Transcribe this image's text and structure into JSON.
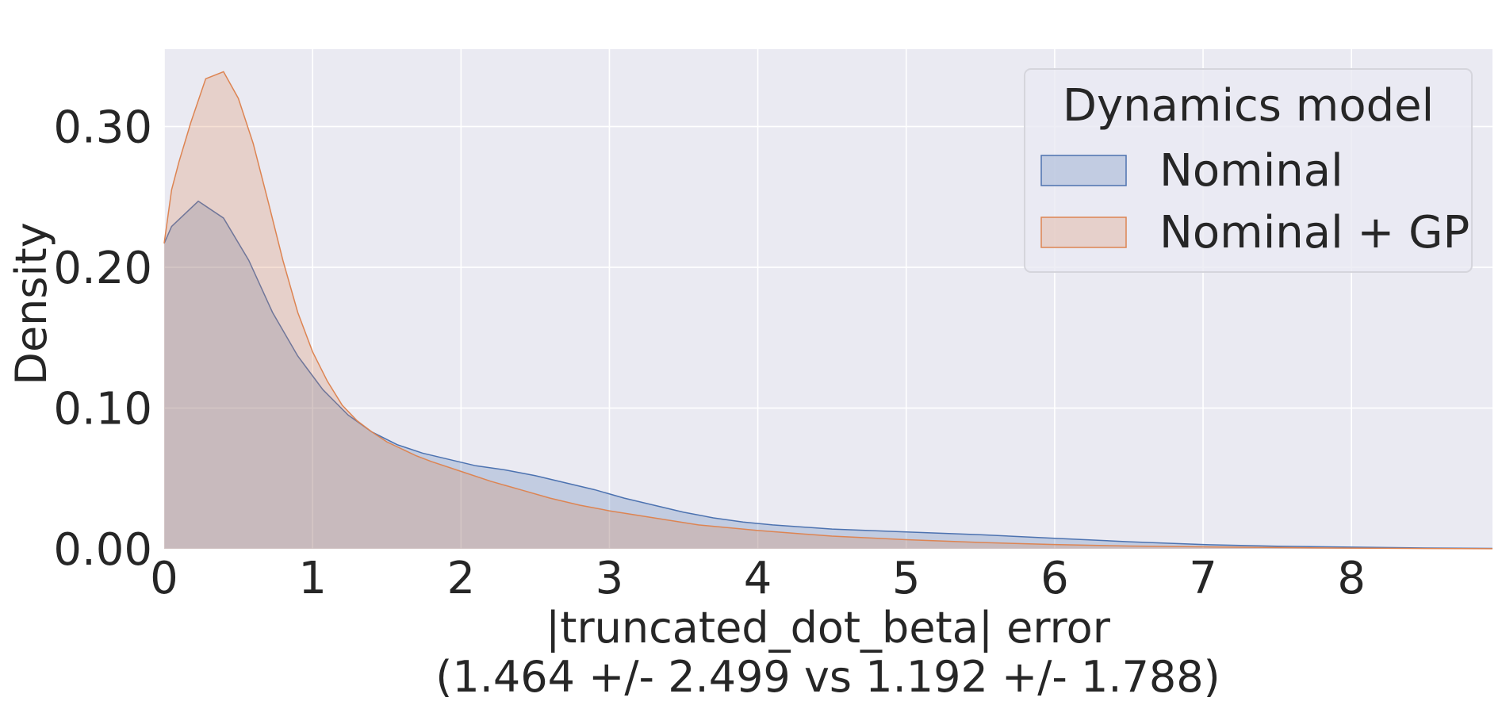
{
  "chart_data": {
    "type": "area",
    "xlabel": "|truncated_dot_beta| error",
    "xlabel_line2": "(1.464 +/- 2.499 vs 1.192 +/- 1.788)",
    "ylabel": "Density",
    "xlim": [
      0,
      8.95
    ],
    "ylim": [
      0,
      0.355
    ],
    "x_ticks": [
      0,
      1,
      2,
      3,
      4,
      5,
      6,
      7,
      8
    ],
    "x_tick_labels": [
      "0",
      "1",
      "2",
      "3",
      "4",
      "5",
      "6",
      "7",
      "8"
    ],
    "y_ticks": [
      0,
      0.1,
      0.2,
      0.3
    ],
    "y_tick_labels": [
      "0.00",
      "0.10",
      "0.20",
      "0.30"
    ],
    "grid": true,
    "legend": {
      "title": "Dynamics model",
      "placement": "top-right"
    },
    "series": [
      {
        "name": "Nominal",
        "color": "#4C72B0",
        "x": [
          0,
          0.05,
          0.1,
          0.23,
          0.4,
          0.57,
          0.73,
          0.9,
          1.07,
          1.24,
          1.4,
          1.57,
          1.74,
          1.9,
          2.1,
          2.3,
          2.5,
          2.7,
          2.9,
          3.1,
          3.3,
          3.5,
          3.7,
          3.9,
          4.1,
          4.5,
          5.0,
          5.5,
          6.0,
          6.5,
          7.0,
          7.5,
          8.0,
          8.5,
          8.95
        ],
        "y": [
          0.217,
          0.229,
          0.234,
          0.247,
          0.235,
          0.205,
          0.168,
          0.137,
          0.113,
          0.095,
          0.083,
          0.074,
          0.068,
          0.064,
          0.059,
          0.056,
          0.052,
          0.047,
          0.042,
          0.036,
          0.031,
          0.026,
          0.022,
          0.019,
          0.017,
          0.014,
          0.012,
          0.01,
          0.0075,
          0.005,
          0.003,
          0.0018,
          0.0012,
          0.0006,
          0.0003
        ]
      },
      {
        "name": "Nominal + GP",
        "color": "#DD8452",
        "x": [
          0,
          0.05,
          0.1,
          0.18,
          0.28,
          0.4,
          0.5,
          0.6,
          0.7,
          0.8,
          0.9,
          1.0,
          1.1,
          1.2,
          1.3,
          1.4,
          1.5,
          1.6,
          1.7,
          1.8,
          2.0,
          2.2,
          2.4,
          2.6,
          2.8,
          3.0,
          3.3,
          3.6,
          4.0,
          4.5,
          5.0,
          5.5,
          6.0,
          6.5,
          7.0,
          7.5,
          8.0,
          8.5,
          8.95
        ],
        "y": [
          0.217,
          0.255,
          0.275,
          0.303,
          0.334,
          0.339,
          0.32,
          0.288,
          0.247,
          0.205,
          0.168,
          0.14,
          0.119,
          0.102,
          0.091,
          0.083,
          0.076,
          0.071,
          0.066,
          0.062,
          0.055,
          0.048,
          0.042,
          0.036,
          0.031,
          0.027,
          0.022,
          0.017,
          0.013,
          0.009,
          0.0065,
          0.0045,
          0.003,
          0.002,
          0.0014,
          0.0009,
          0.0005,
          0.0002,
          0.0001
        ]
      }
    ]
  }
}
